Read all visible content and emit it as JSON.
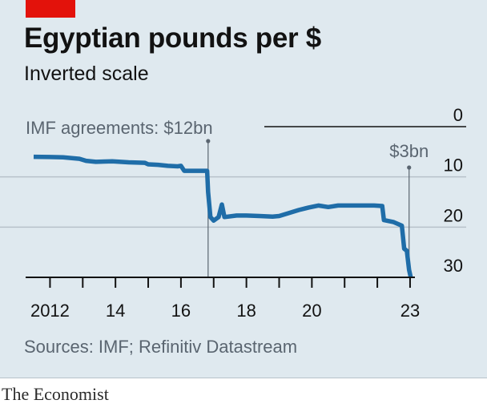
{
  "header": {
    "title": "Egyptian pounds per $",
    "subtitle": "Inverted scale"
  },
  "footer": {
    "source": "Sources: IMF; Refinitiv Datastream",
    "brand": "The Economist"
  },
  "colors": {
    "background": "#dfe9ef",
    "accent_tag": "#e3120b",
    "series": "#1f6da8",
    "gridline": "#b7c2ca",
    "annotation": "#5a6570"
  },
  "chart_data": {
    "type": "line",
    "title": "Egyptian pounds per $",
    "subtitle": "Inverted scale",
    "y_inverted": true,
    "ylim": [
      0,
      30
    ],
    "xlim": [
      2011.5,
      2023.05
    ],
    "y_ticks": [
      0,
      10,
      20,
      30
    ],
    "y_tick_labels": [
      "0",
      "10",
      "20",
      "30"
    ],
    "x_ticks": [
      2012,
      2013,
      2014,
      2015,
      2016,
      2017,
      2018,
      2019,
      2020,
      2021,
      2022,
      2023
    ],
    "x_tick_labels": [
      {
        "at": 2012,
        "label": "2012"
      },
      {
        "at": 2014,
        "label": "14"
      },
      {
        "at": 2016,
        "label": "16"
      },
      {
        "at": 2018,
        "label": "18"
      },
      {
        "at": 2020,
        "label": "20"
      },
      {
        "at": 2023,
        "label": "23"
      }
    ],
    "grid": true,
    "series": [
      {
        "values": [
          [
            2011.5,
            6.0
          ],
          [
            2012.0,
            6.05
          ],
          [
            2012.4,
            6.1
          ],
          [
            2012.9,
            6.4
          ],
          [
            2013.1,
            6.8
          ],
          [
            2013.4,
            7.0
          ],
          [
            2013.9,
            6.9
          ],
          [
            2014.4,
            7.1
          ],
          [
            2014.9,
            7.2
          ],
          [
            2015.0,
            7.5
          ],
          [
            2015.3,
            7.6
          ],
          [
            2015.6,
            7.8
          ],
          [
            2015.9,
            7.9
          ],
          [
            2016.0,
            7.8
          ],
          [
            2016.1,
            8.8
          ],
          [
            2016.8,
            8.8
          ],
          [
            2016.83,
            13.0
          ],
          [
            2016.9,
            18.0
          ],
          [
            2017.0,
            18.7
          ],
          [
            2017.15,
            18.0
          ],
          [
            2017.25,
            15.5
          ],
          [
            2017.33,
            18.0
          ],
          [
            2017.7,
            17.7
          ],
          [
            2018.0,
            17.7
          ],
          [
            2018.4,
            17.8
          ],
          [
            2018.8,
            17.9
          ],
          [
            2019.0,
            17.8
          ],
          [
            2019.3,
            17.2
          ],
          [
            2019.6,
            16.6
          ],
          [
            2019.9,
            16.1
          ],
          [
            2020.2,
            15.7
          ],
          [
            2020.5,
            16.0
          ],
          [
            2020.8,
            15.7
          ],
          [
            2021.3,
            15.7
          ],
          [
            2021.9,
            15.7
          ],
          [
            2022.15,
            15.8
          ],
          [
            2022.2,
            18.6
          ],
          [
            2022.5,
            19.0
          ],
          [
            2022.75,
            19.7
          ],
          [
            2022.82,
            24.3
          ],
          [
            2022.9,
            24.7
          ],
          [
            2022.97,
            28.5
          ],
          [
            2023.02,
            30.0
          ]
        ]
      }
    ],
    "annotations": [
      {
        "at": 2016.83,
        "label": "IMF agreements: $12bn"
      },
      {
        "at": 2022.97,
        "label": "$3bn"
      }
    ]
  }
}
